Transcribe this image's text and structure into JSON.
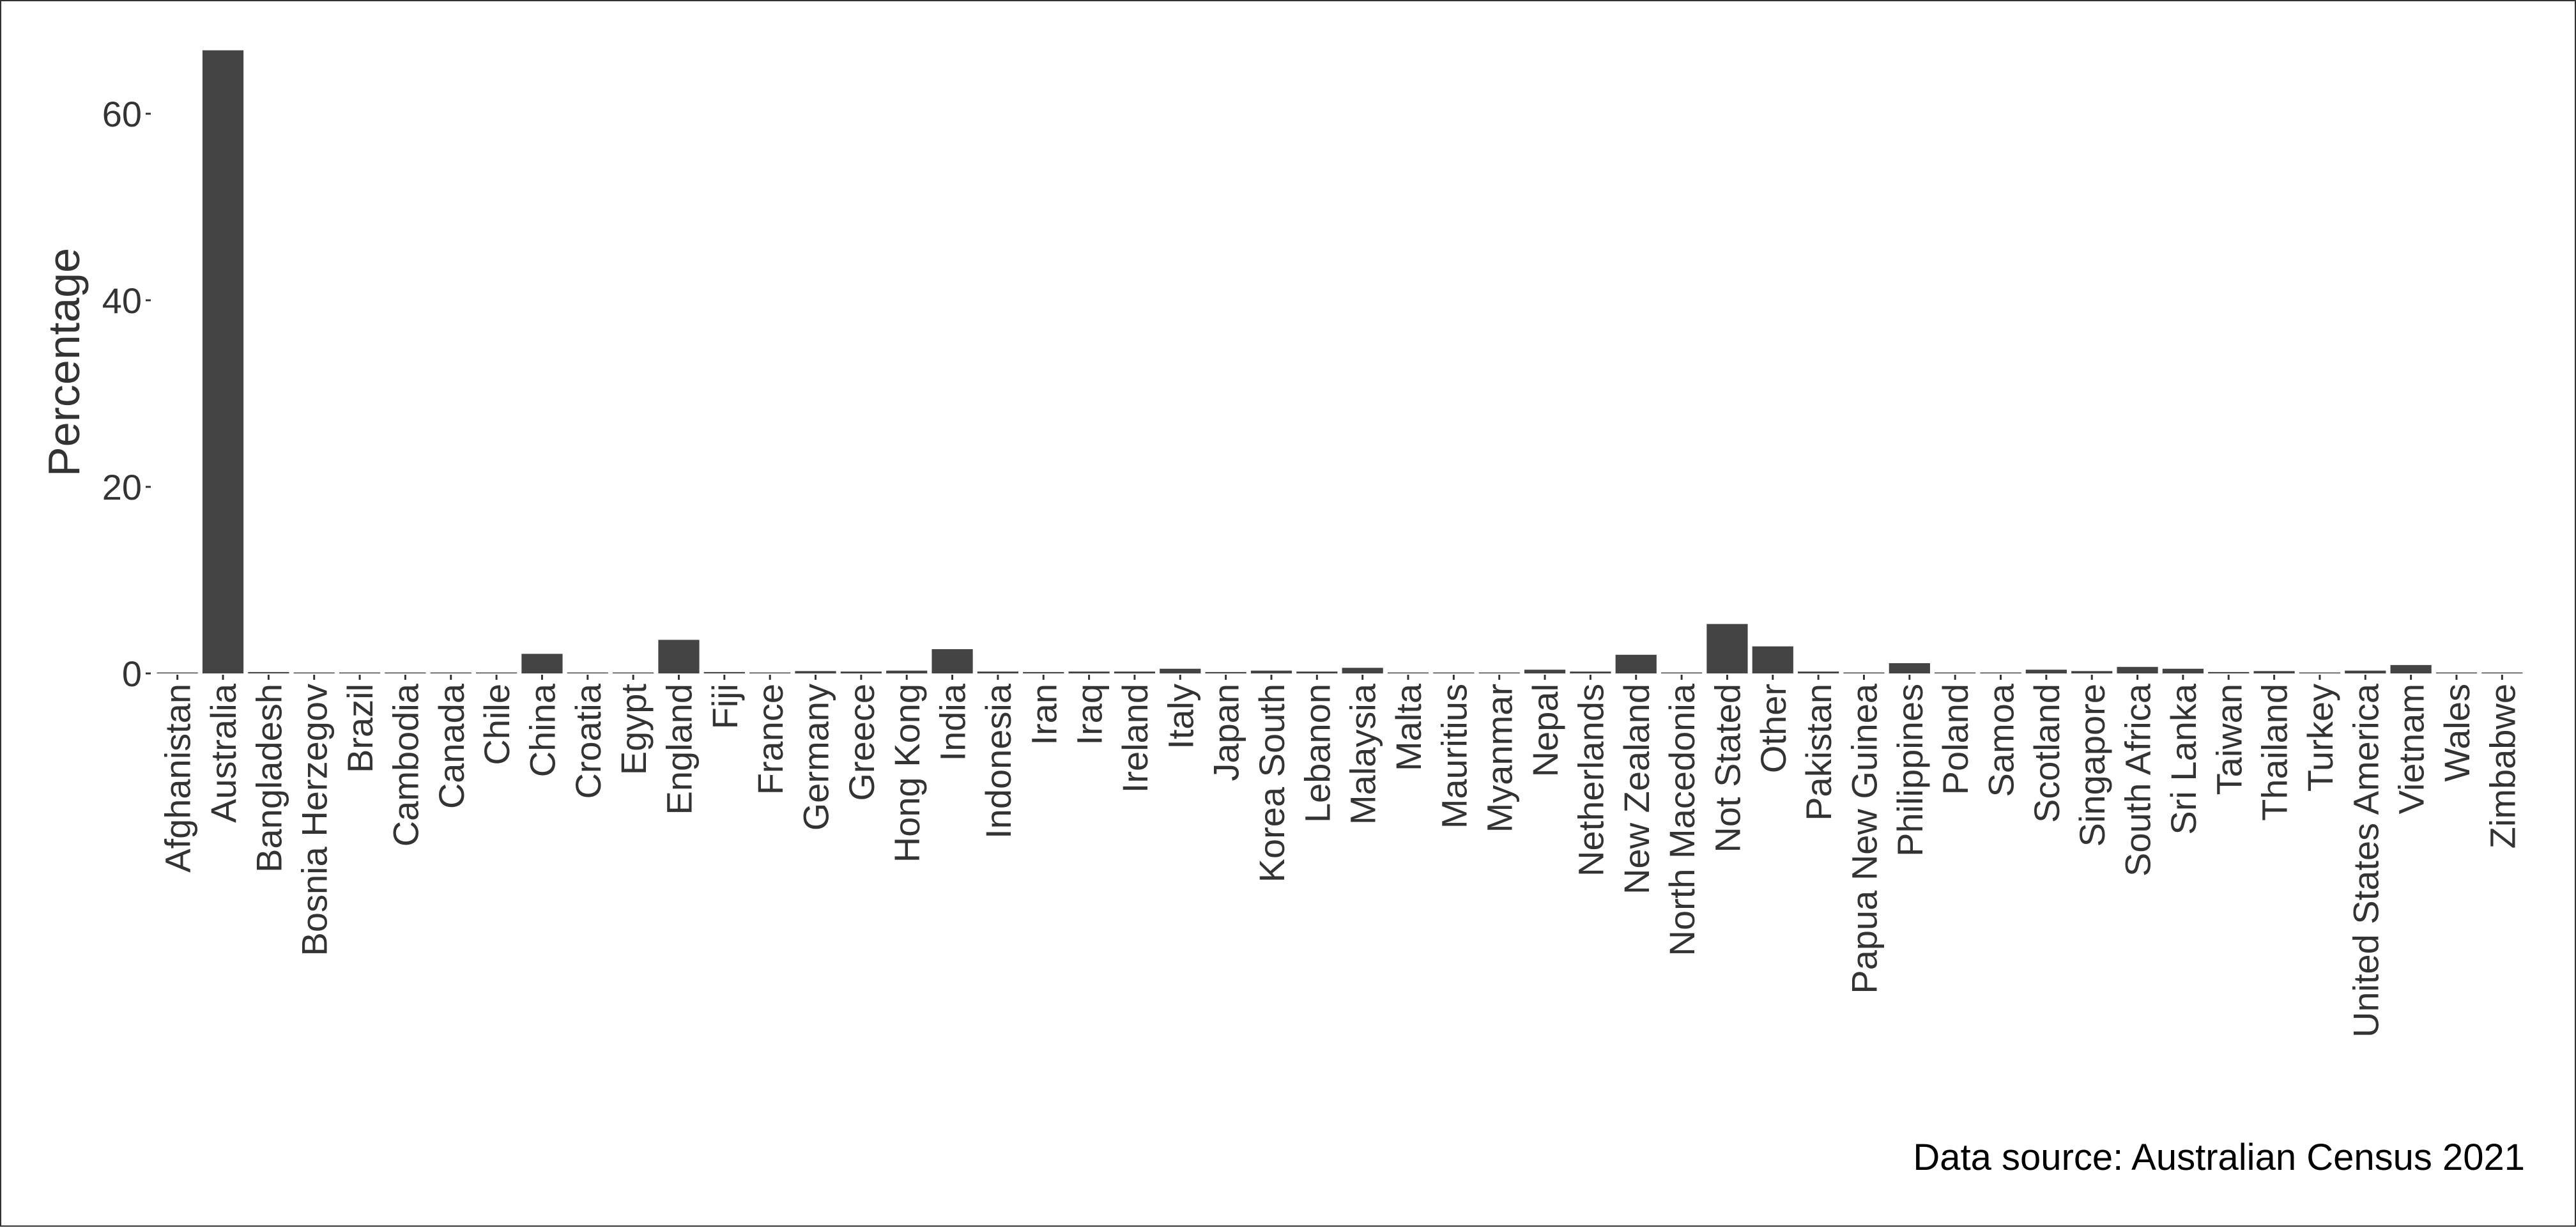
{
  "chart_data": {
    "type": "bar",
    "ylabel": "Percentage",
    "xlabel": "",
    "ylim": [
      0,
      67
    ],
    "yticks": [
      0,
      20,
      40,
      60
    ],
    "grid": false,
    "bar_color": "#444444",
    "categories": [
      "Afghanistan",
      "Australia",
      "Bangladesh",
      "Bosnia Herzegov",
      "Brazil",
      "Cambodia",
      "Canada",
      "Chile",
      "China",
      "Croatia",
      "Egypt",
      "England",
      "Fiji",
      "France",
      "Germany",
      "Greece",
      "Hong Kong",
      "India",
      "Indonesia",
      "Iran",
      "Iraq",
      "Ireland",
      "Italy",
      "Japan",
      "Korea South",
      "Lebanon",
      "Malaysia",
      "Malta",
      "Mauritius",
      "Myanmar",
      "Nepal",
      "Netherlands",
      "New Zealand",
      "North Macedonia",
      "Not Stated",
      "Other",
      "Pakistan",
      "Papua New Guinea",
      "Philippines",
      "Poland",
      "Samoa",
      "Scotland",
      "Singapore",
      "South Africa",
      "Sri Lanka",
      "Taiwan",
      "Thailand",
      "Turkey",
      "United States America",
      "Vietnam",
      "Wales",
      "Zimbabwe"
    ],
    "values": [
      0.1,
      66.8,
      0.15,
      0.1,
      0.1,
      0.1,
      0.1,
      0.1,
      2.1,
      0.1,
      0.1,
      3.6,
      0.15,
      0.1,
      0.25,
      0.2,
      0.3,
      2.6,
      0.2,
      0.15,
      0.2,
      0.2,
      0.5,
      0.15,
      0.3,
      0.2,
      0.6,
      0.1,
      0.1,
      0.1,
      0.4,
      0.2,
      2.0,
      0.1,
      5.3,
      2.9,
      0.2,
      0.1,
      1.1,
      0.1,
      0.1,
      0.4,
      0.25,
      0.7,
      0.5,
      0.15,
      0.25,
      0.1,
      0.3,
      0.9,
      0.1,
      0.1
    ]
  },
  "caption": "Data source: Australian Census 2021"
}
